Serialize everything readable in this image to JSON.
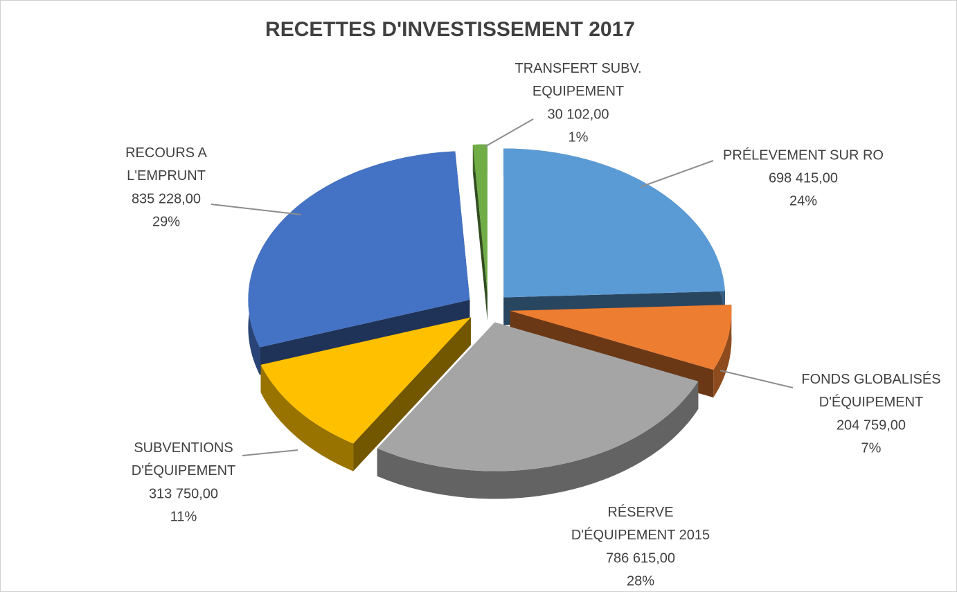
{
  "chart_data": {
    "type": "pie",
    "title": "RECETTES D'INVESTISSEMENT 2017",
    "categories": [
      "PRÉLEVEMENT SUR RO",
      "FONDS GLOBALISÉS\nD'ÉQUIPEMENT",
      "RÉSERVE\nD'ÉQUIPEMENT 2015",
      "SUBVENTIONS\nD'ÉQUIPEMENT",
      "RECOURS A\nL'EMPRUNT",
      "TRANSFERT SUBV.\nEQUIPEMENT"
    ],
    "values": [
      698415,
      204759,
      786615,
      313750,
      835228,
      30102
    ],
    "value_labels": [
      "698 415,00",
      "204 759,00",
      "786 615,00",
      "313 750,00",
      "835 228,00",
      "30 102,00"
    ],
    "percent_labels": [
      "24%",
      "7%",
      "28%",
      "11%",
      "29%",
      "1%"
    ],
    "colors": [
      "#5b9bd5",
      "#ed7d31",
      "#a5a5a5",
      "#ffc000",
      "#4472c4",
      "#70ad47"
    ]
  }
}
